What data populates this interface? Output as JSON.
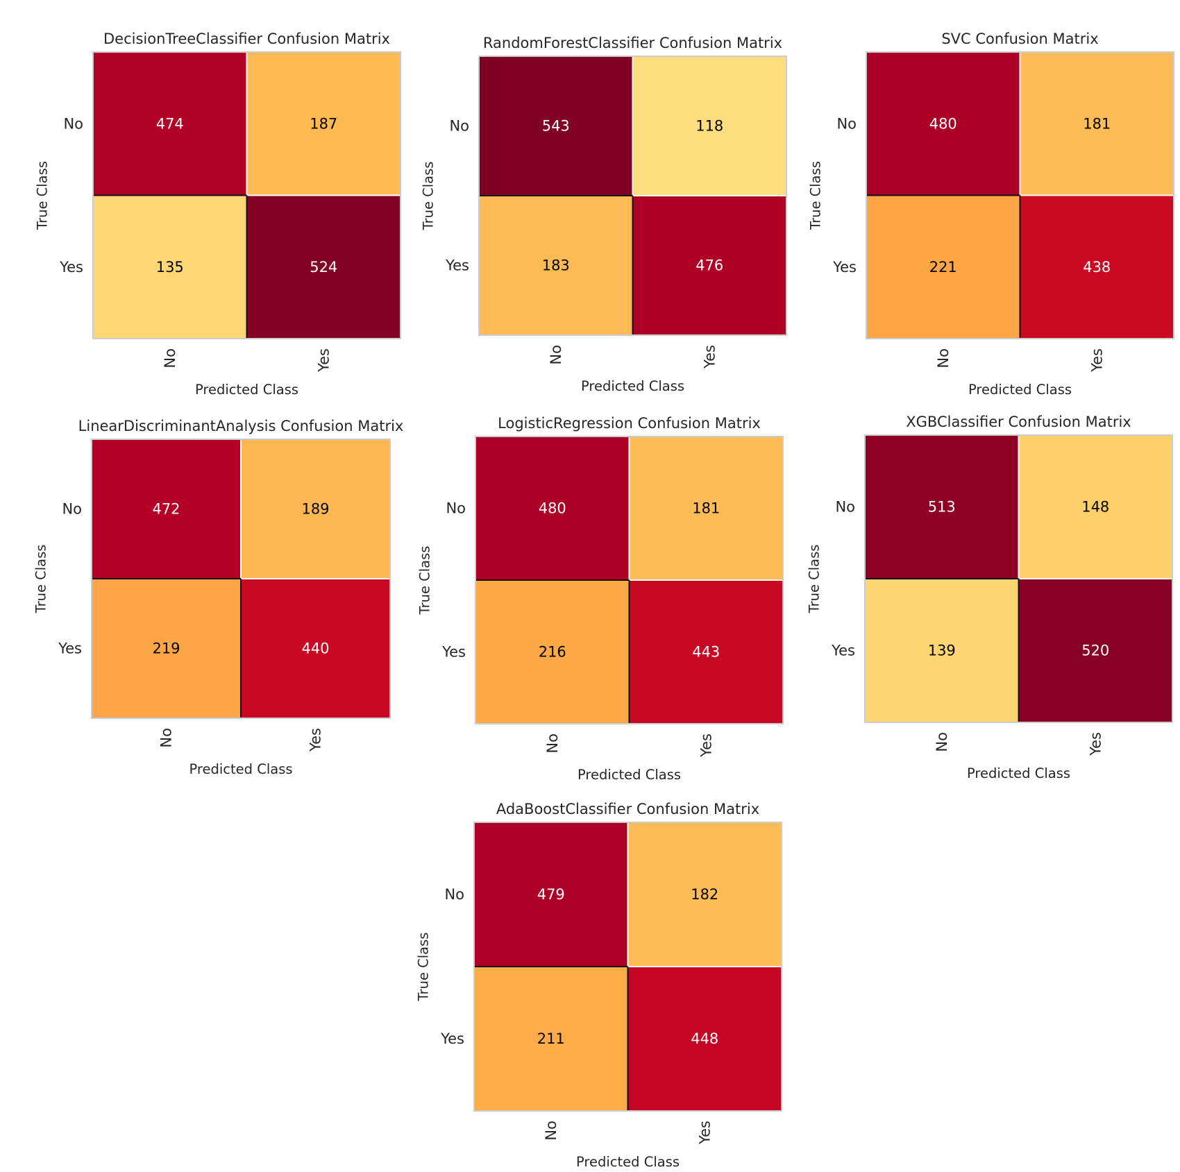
{
  "chart_data": [
    {
      "type": "heatmap",
      "title": "DecisionTreeClassifier Confusion Matrix",
      "xlabel": "Predicted Class",
      "ylabel": "True Class",
      "x_categories": [
        "No",
        "Yes"
      ],
      "y_categories": [
        "No",
        "Yes"
      ],
      "values": [
        [
          474,
          187
        ],
        [
          135,
          524
        ]
      ]
    },
    {
      "type": "heatmap",
      "title": "RandomForestClassifier Confusion Matrix",
      "xlabel": "Predicted Class",
      "ylabel": "True Class",
      "x_categories": [
        "No",
        "Yes"
      ],
      "y_categories": [
        "No",
        "Yes"
      ],
      "values": [
        [
          543,
          118
        ],
        [
          183,
          476
        ]
      ]
    },
    {
      "type": "heatmap",
      "title": "SVC Confusion Matrix",
      "xlabel": "Predicted Class",
      "ylabel": "True Class",
      "x_categories": [
        "No",
        "Yes"
      ],
      "y_categories": [
        "No",
        "Yes"
      ],
      "values": [
        [
          480,
          181
        ],
        [
          221,
          438
        ]
      ]
    },
    {
      "type": "heatmap",
      "title": "LinearDiscriminantAnalysis Confusion Matrix",
      "xlabel": "Predicted Class",
      "ylabel": "True Class",
      "x_categories": [
        "No",
        "Yes"
      ],
      "y_categories": [
        "No",
        "Yes"
      ],
      "values": [
        [
          472,
          189
        ],
        [
          219,
          440
        ]
      ]
    },
    {
      "type": "heatmap",
      "title": "LogisticRegression Confusion Matrix",
      "xlabel": "Predicted Class",
      "ylabel": "True Class",
      "x_categories": [
        "No",
        "Yes"
      ],
      "y_categories": [
        "No",
        "Yes"
      ],
      "values": [
        [
          480,
          181
        ],
        [
          216,
          443
        ]
      ]
    },
    {
      "type": "heatmap",
      "title": "XGBClassifier Confusion Matrix",
      "xlabel": "Predicted Class",
      "ylabel": "True Class",
      "x_categories": [
        "No",
        "Yes"
      ],
      "y_categories": [
        "No",
        "Yes"
      ],
      "values": [
        [
          513,
          148
        ],
        [
          139,
          520
        ]
      ]
    },
    {
      "type": "heatmap",
      "title": "AdaBoostClassifier Confusion Matrix",
      "xlabel": "Predicted Class",
      "ylabel": "True Class",
      "x_categories": [
        "No",
        "Yes"
      ],
      "y_categories": [
        "No",
        "Yes"
      ],
      "values": [
        [
          479,
          182
        ],
        [
          211,
          448
        ]
      ]
    }
  ],
  "colormap": [
    "#ffffcc",
    "#ffeda0",
    "#fed976",
    "#feb24c",
    "#fd8d3c",
    "#fc4e2a",
    "#e31a1c",
    "#bd0026",
    "#800026"
  ],
  "grid_color": "#ffffff",
  "frame_color": "#cccccc",
  "text_color": "#262626"
}
